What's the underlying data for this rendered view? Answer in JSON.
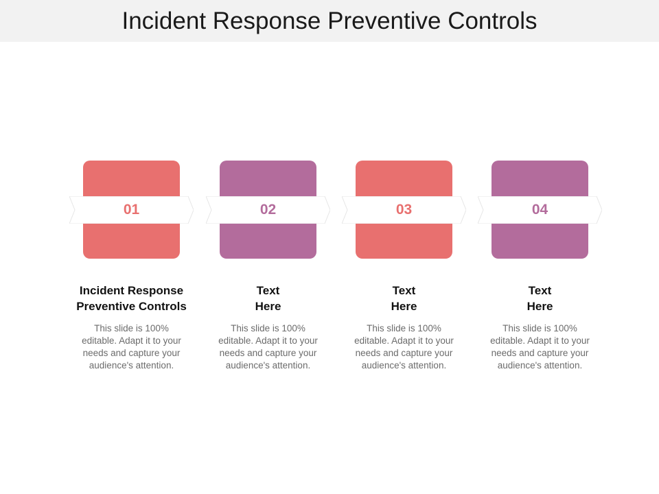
{
  "title": "Incident Response Preventive Controls",
  "colors": {
    "coral": "#e8706f",
    "purple": "#b36c9c",
    "title_bar": "#f2f2f2",
    "ribbon": "#ffffff"
  },
  "steps": [
    {
      "number": "01",
      "heading_line1": "Incident Response",
      "heading_line2": "Preventive Controls",
      "body": "This slide is 100% editable. Adapt it to your needs and capture your audience's attention.",
      "color": "#e8706f"
    },
    {
      "number": "02",
      "heading_line1": "Text",
      "heading_line2": "Here",
      "body": "This slide is 100% editable. Adapt it to your needs and capture your audience's attention.",
      "color": "#b36c9c"
    },
    {
      "number": "03",
      "heading_line1": "Text",
      "heading_line2": "Here",
      "body": "This slide is 100% editable. Adapt it to your needs and capture your audience's attention.",
      "color": "#e8706f"
    },
    {
      "number": "04",
      "heading_line1": "Text",
      "heading_line2": "Here",
      "body": "This slide is 100% editable. Adapt it to your needs and capture your audience's attention.",
      "color": "#b36c9c"
    }
  ]
}
